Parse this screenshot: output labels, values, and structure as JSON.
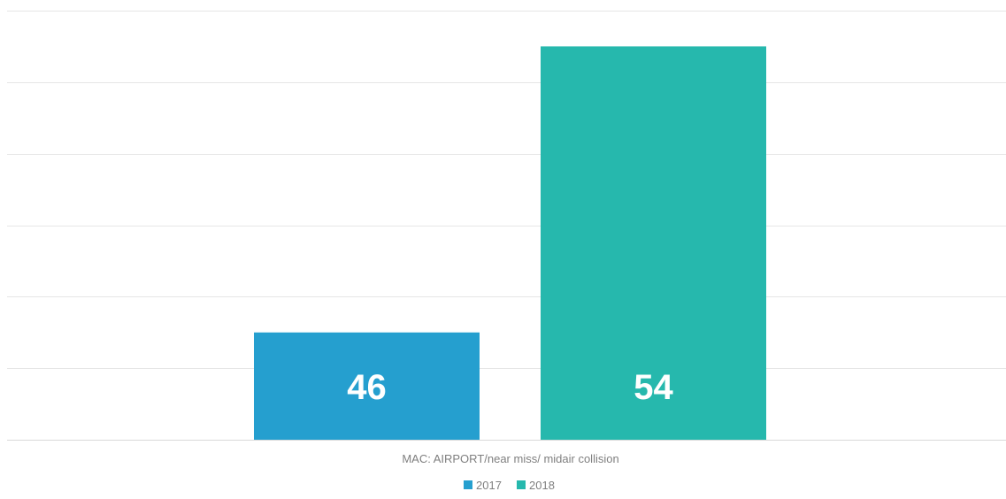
{
  "chart_data": {
    "type": "bar",
    "categories": [
      "MAC: AIRPORT/near miss/ midair collision"
    ],
    "series": [
      {
        "name": "2017",
        "values": [
          46
        ],
        "color": "#259fcf"
      },
      {
        "name": "2018",
        "values": [
          54
        ],
        "color": "#26b8ad"
      }
    ],
    "ylim": [
      43,
      55
    ],
    "y_ticks": [
      43,
      45,
      47,
      49,
      51,
      53,
      55
    ],
    "grid": true,
    "y_axis_labels_visible": false,
    "data_labels": true,
    "legend_position": "bottom",
    "title": "",
    "xlabel": "",
    "ylabel": ""
  }
}
